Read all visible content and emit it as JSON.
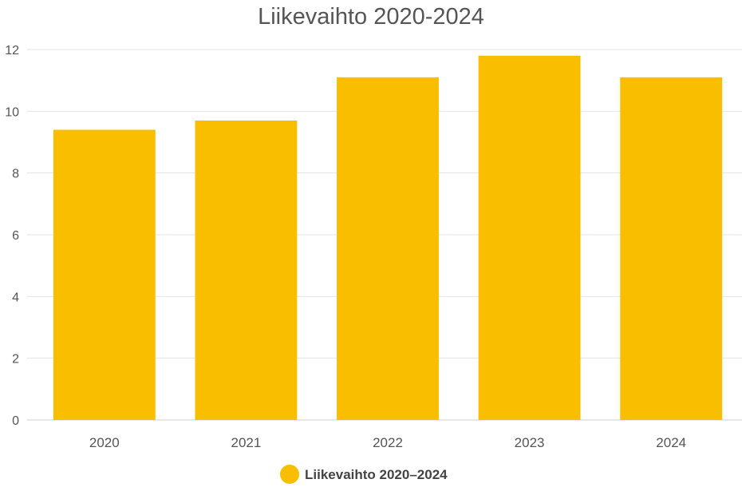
{
  "chart_data": {
    "type": "bar",
    "title": "Liikevaihto 2020-2024",
    "categories": [
      "2020",
      "2021",
      "2022",
      "2023",
      "2024"
    ],
    "series": [
      {
        "name": "Liikevaihto 2020–2024",
        "values": [
          9.4,
          9.7,
          11.1,
          11.8,
          11.1
        ]
      }
    ],
    "ylim": [
      0,
      12
    ],
    "yticks": [
      0,
      2,
      4,
      6,
      8,
      10,
      12
    ],
    "grid": true,
    "legend": "bottom-center",
    "xlabel": "",
    "ylabel": ""
  },
  "colors": {
    "bar": "#F9BE00",
    "grid": "#E3E3E3",
    "axis_text": "#555555",
    "title_text": "#555555",
    "legend_text": "#444444"
  }
}
